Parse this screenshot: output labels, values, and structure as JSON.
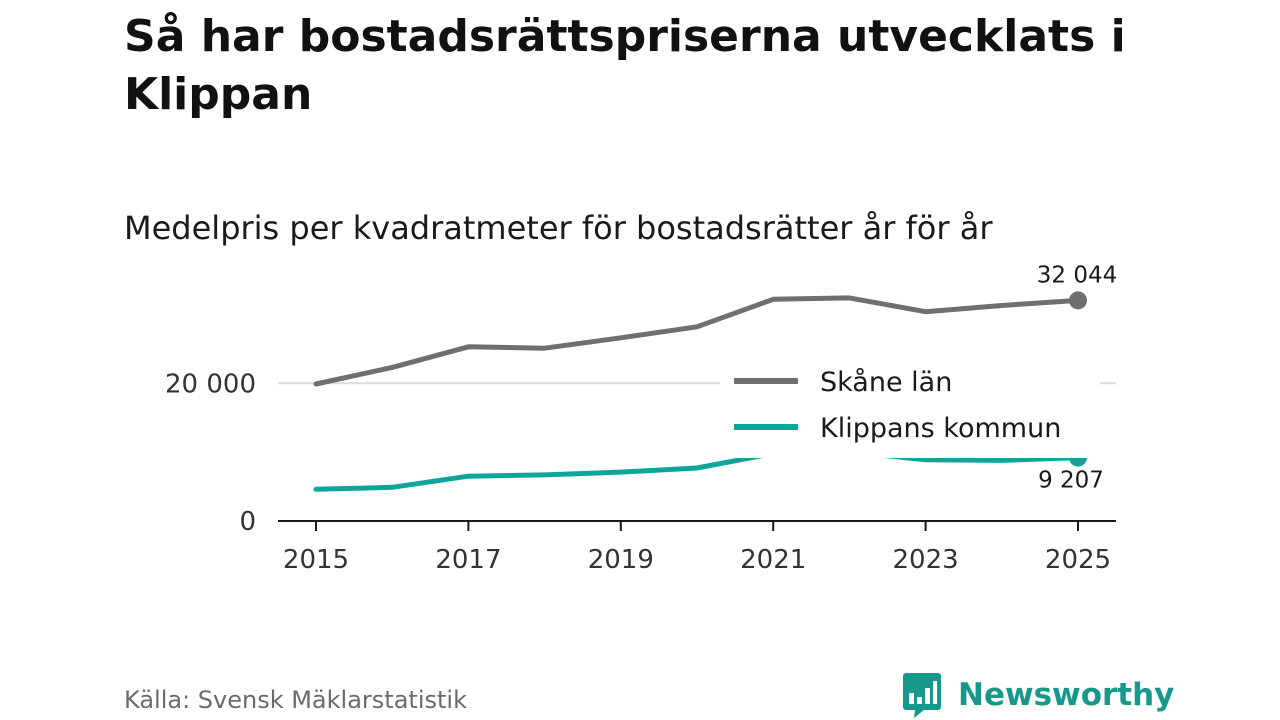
{
  "title": "Så har bostadsrättspriserna utvecklats i Klippan",
  "subtitle": "Medelpris per kvadratmeter för bostadsrätter år för år",
  "source": "Källa: Svensk Mäklarstatistik",
  "brand": {
    "name": "Newsworthy",
    "icon": "newsworthy-logo-icon",
    "color": "#16998b"
  },
  "chart_data": {
    "type": "line",
    "title": "Medelpris per kvadratmeter för bostadsrätter år för år",
    "xlabel": "",
    "ylabel": "",
    "x": [
      2015,
      2016,
      2017,
      2018,
      2019,
      2020,
      2021,
      2022,
      2023,
      2024,
      2025
    ],
    "xticks": [
      2015,
      2017,
      2019,
      2021,
      2023,
      2025
    ],
    "xtick_labels": [
      "2015",
      "2017",
      "2019",
      "2021",
      "2023",
      "2025"
    ],
    "xlim": [
      2014.5,
      2025.5
    ],
    "ylim": [
      0,
      35000
    ],
    "yticks": [
      0,
      20000
    ],
    "ytick_labels": [
      "0",
      "20 000"
    ],
    "grid": "horizontal",
    "legend_position": "right",
    "series": [
      {
        "name": "Skåne län",
        "color": "#6e6e73",
        "values": [
          19900,
          22300,
          25300,
          25100,
          26600,
          28200,
          32200,
          32400,
          30400,
          31300,
          32044
        ],
        "end_label": "32 044"
      },
      {
        "name": "Klippans kommun",
        "color": "#0fa59b",
        "values": [
          4600,
          4900,
          6500,
          6700,
          7100,
          7700,
          9800,
          10000,
          8900,
          8800,
          9207
        ],
        "end_label": "9 207"
      }
    ]
  }
}
